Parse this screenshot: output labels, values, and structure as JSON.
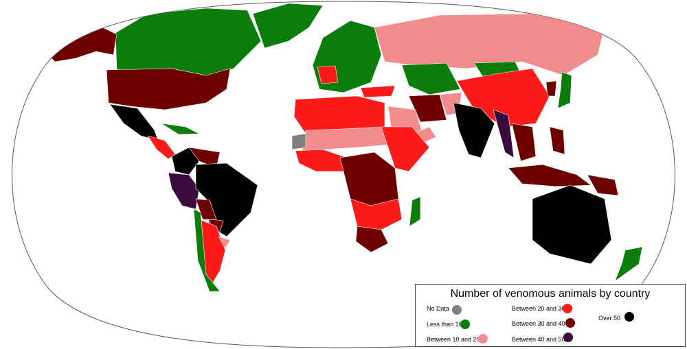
{
  "legend": {
    "title": "Number of venomous animals by country",
    "categories": [
      {
        "label": "No Data",
        "color": "#808080"
      },
      {
        "label": "Less than 10",
        "color": "#0a7d0a"
      },
      {
        "label": "Between 10 and 20",
        "color": "#f28c8c"
      },
      {
        "label": "Between 20 and 30",
        "color": "#ff1a1a"
      },
      {
        "label": "Between 30 and 40",
        "color": "#6e0000"
      },
      {
        "label": "Between 40 and 50",
        "color": "#3a0a3f"
      },
      {
        "label": "Over 50",
        "color": "#000000"
      }
    ]
  },
  "regions": [
    {
      "name": "Canada",
      "category": 1
    },
    {
      "name": "Greenland",
      "category": 1
    },
    {
      "name": "Alaska",
      "category": 4
    },
    {
      "name": "United States",
      "category": 4
    },
    {
      "name": "Mexico",
      "category": 6
    },
    {
      "name": "Central America",
      "category": 3
    },
    {
      "name": "Caribbean",
      "category": 1
    },
    {
      "name": "Colombia",
      "category": 6
    },
    {
      "name": "Venezuela",
      "category": 4
    },
    {
      "name": "Ecuador / Peru",
      "category": 5
    },
    {
      "name": "Brazil",
      "category": 6
    },
    {
      "name": "Bolivia",
      "category": 4
    },
    {
      "name": "Paraguay",
      "category": 4
    },
    {
      "name": "Argentina",
      "category": 3
    },
    {
      "name": "Chile",
      "category": 1
    },
    {
      "name": "Uruguay",
      "category": 2
    },
    {
      "name": "Europe",
      "category": 1
    },
    {
      "name": "France",
      "category": 3
    },
    {
      "name": "Russia",
      "category": 2
    },
    {
      "name": "Kazakhstan",
      "category": 1
    },
    {
      "name": "Mongolia",
      "category": 1
    },
    {
      "name": "China",
      "category": 3
    },
    {
      "name": "Japan",
      "category": 1
    },
    {
      "name": "Korea",
      "category": 4
    },
    {
      "name": "Turkey",
      "category": 3
    },
    {
      "name": "Iran",
      "category": 4
    },
    {
      "name": "Afghanistan",
      "category": 2
    },
    {
      "name": "Saudi Arabia",
      "category": 2
    },
    {
      "name": "Yemen / Oman",
      "category": 2
    },
    {
      "name": "India",
      "category": 6
    },
    {
      "name": "Myanmar",
      "category": 5
    },
    {
      "name": "Southeast Asia",
      "category": 4
    },
    {
      "name": "Philippines",
      "category": 4
    },
    {
      "name": "Indonesia",
      "category": 4
    },
    {
      "name": "Papua New Guinea",
      "category": 4
    },
    {
      "name": "Australia",
      "category": 6
    },
    {
      "name": "New Zealand",
      "category": 1
    },
    {
      "name": "Madagascar",
      "category": 1
    },
    {
      "name": "North Africa",
      "category": 3
    },
    {
      "name": "Sahel",
      "category": 2
    },
    {
      "name": "West Africa",
      "category": 3
    },
    {
      "name": "Central Africa",
      "category": 4
    },
    {
      "name": "East Africa",
      "category": 3
    },
    {
      "name": "Southern Africa",
      "category": 3
    },
    {
      "name": "South Africa",
      "category": 4
    },
    {
      "name": "Western Sahara",
      "category": 0
    }
  ]
}
